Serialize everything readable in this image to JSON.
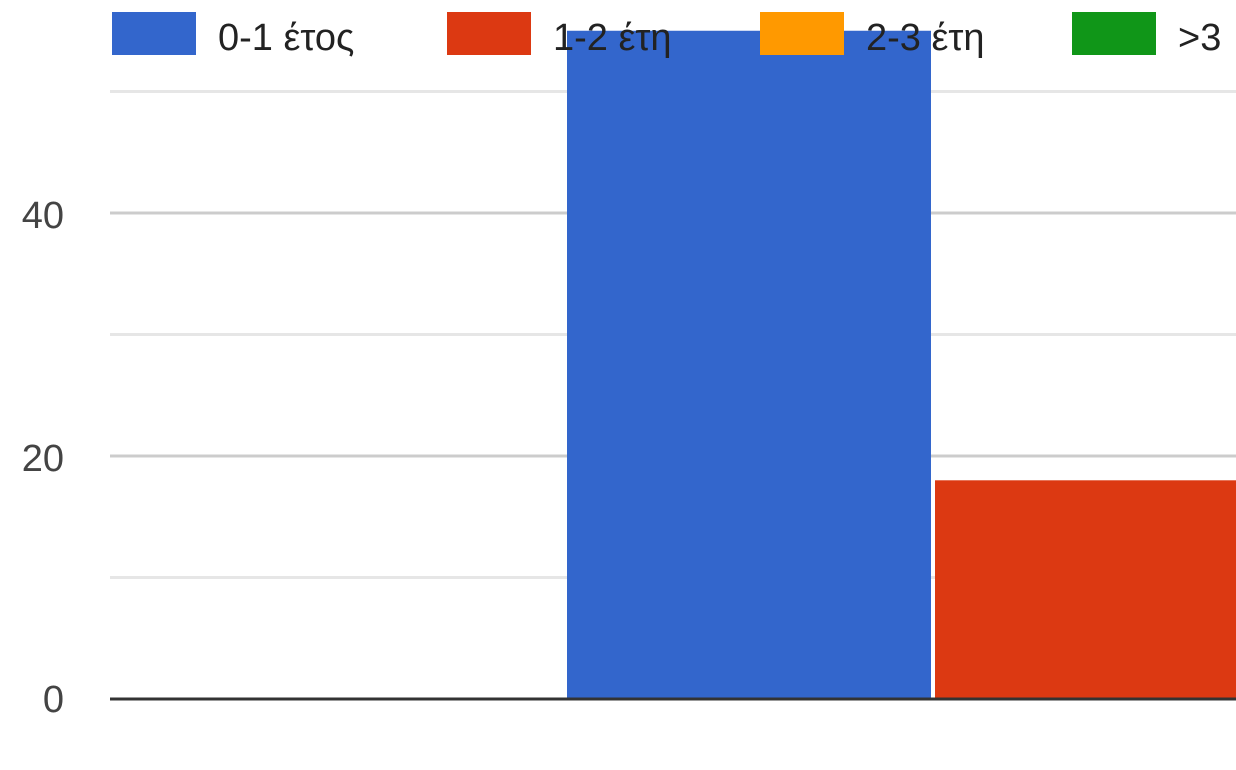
{
  "chart_data": {
    "type": "bar",
    "series": [
      {
        "name": "0-1 έτος",
        "color": "#3366cc",
        "value": 55
      },
      {
        "name": "1-2 έτη",
        "color": "#dc3912",
        "value": 18
      },
      {
        "name": "2-3 έτη",
        "color": "#ff9900",
        "value": 0
      },
      {
        "name": ">3",
        "color": "#109618",
        "value": 0
      }
    ],
    "y_ticks": [
      "0",
      "20",
      "40"
    ],
    "ylim": [
      0,
      50
    ],
    "grid": true,
    "legend_position": "top"
  }
}
